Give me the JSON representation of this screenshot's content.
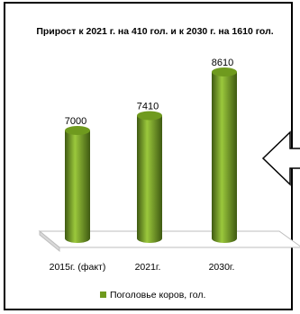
{
  "chart_data": {
    "type": "bar",
    "style": "3d-cylinder",
    "title": "Прирост к 2021 г. на 410 гол. и к 2030 г. на 1610 гол.",
    "categories": [
      "2015г. (факт)",
      "2021г.",
      "2030г."
    ],
    "series": [
      {
        "name": "Поголовье коров, гол.",
        "values": [
          7000,
          7410,
          8610
        ]
      }
    ],
    "value_labels": [
      "7000",
      "7410",
      "8610"
    ],
    "ylim": [
      0,
      8610
    ],
    "grid": false,
    "legend": "bottom",
    "colors": {
      "bar_light": "#9bc83c",
      "bar_dark": "#3f5a12",
      "bar_top": "#6f9a1e",
      "legend_swatch": "#6f9a1e",
      "floor": "#ffffff",
      "floor_edge": "#bdbdbd",
      "frame": "#000000"
    }
  },
  "decor": {
    "arrow": "left-arrow-icon"
  }
}
